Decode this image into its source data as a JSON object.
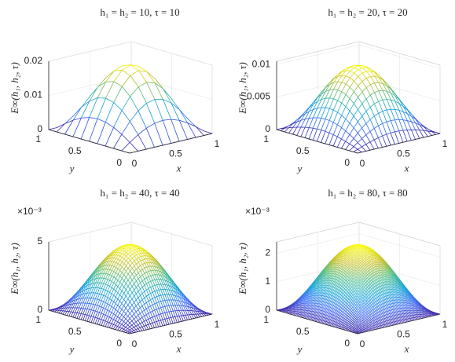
{
  "chart_data": [
    {
      "type": "mesh",
      "title": "h₁ = h₂ = 10,  τ = 10",
      "xlabel": "x",
      "ylabel": "y",
      "zlabel": "E∞(h₁, h₂, τ)",
      "mesh": 10,
      "peak": 0.0195,
      "xlim": [
        0,
        1
      ],
      "ylim": [
        0,
        1
      ],
      "zlim": [
        0,
        0.02
      ],
      "xticks": [
        0,
        0.5,
        1
      ],
      "yticks": [
        0,
        0.5,
        1
      ],
      "zticks": [
        0,
        0.01,
        0.02
      ]
    },
    {
      "type": "mesh",
      "title": "h₁ = h₂ = 20,  τ = 20",
      "xlabel": "x",
      "ylabel": "y",
      "zlabel": "E∞(h₁, h₂, τ)",
      "mesh": 20,
      "peak": 0.0101,
      "xlim": [
        0,
        1
      ],
      "ylim": [
        0,
        1
      ],
      "zlim": [
        0,
        0.0105
      ],
      "xticks": [
        0,
        0.5,
        1
      ],
      "yticks": [
        0,
        0.5,
        1
      ],
      "zticks": [
        0,
        0.005,
        0.01
      ]
    },
    {
      "type": "mesh",
      "title": "h₁ = h₂ = 40,  τ = 40",
      "xlabel": "x",
      "ylabel": "y",
      "zlabel": "E∞(h₁, h₂, τ)",
      "mesh": 40,
      "peak": 0.0049,
      "exponent_label": "×10⁻³",
      "xlim": [
        0,
        1
      ],
      "ylim": [
        0,
        1
      ],
      "zlim": [
        0,
        0.005
      ],
      "xticks": [
        0,
        0.5,
        1
      ],
      "yticks": [
        0,
        0.5,
        1
      ],
      "zticks": [
        0,
        {
          "value": 0.005,
          "label": "5"
        }
      ]
    },
    {
      "type": "mesh",
      "title": "h₁ = h₂ = 80,  τ = 80",
      "xlabel": "x",
      "ylabel": "y",
      "zlabel": "E∞(h₁, h₂, τ)",
      "mesh": 80,
      "peak": 0.00235,
      "exponent_label": "×10⁻³",
      "xlim": [
        0,
        1
      ],
      "ylim": [
        0,
        1
      ],
      "zlim": [
        0,
        0.0024
      ],
      "xticks": [
        0,
        0.5,
        1
      ],
      "yticks": [
        0,
        0.5,
        1
      ],
      "zticks": [
        0,
        {
          "value": 0.001,
          "label": "1"
        },
        {
          "value": 0.002,
          "label": "2"
        }
      ]
    }
  ]
}
